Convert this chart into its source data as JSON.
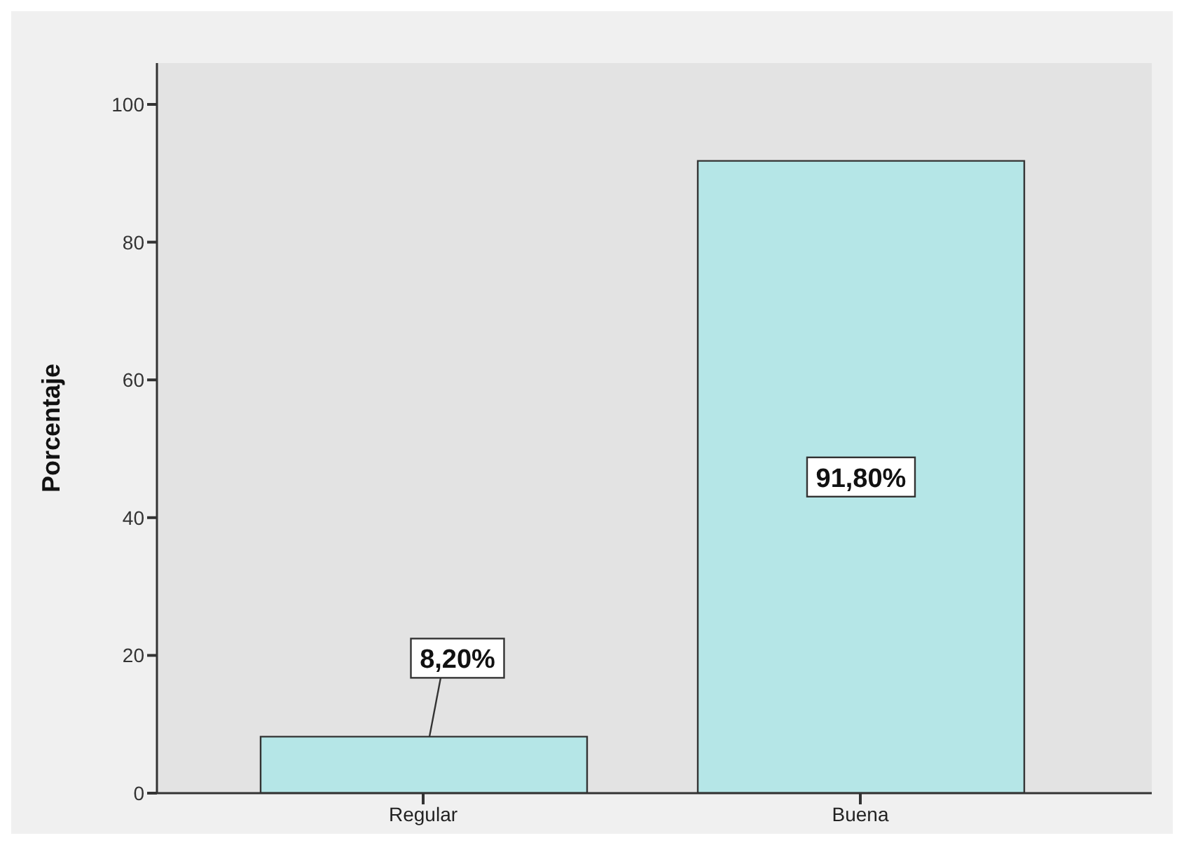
{
  "chart_data": {
    "type": "bar",
    "ylabel": "Porcentaje",
    "categories": [
      "Regular",
      "Buena"
    ],
    "values": [
      8.2,
      91.8
    ],
    "value_labels": [
      "8,20%",
      "91,80%"
    ],
    "color": "#b5e6e7",
    "ylim": [
      0,
      106
    ],
    "yticks": [
      0,
      20,
      40,
      60,
      80,
      100
    ]
  }
}
